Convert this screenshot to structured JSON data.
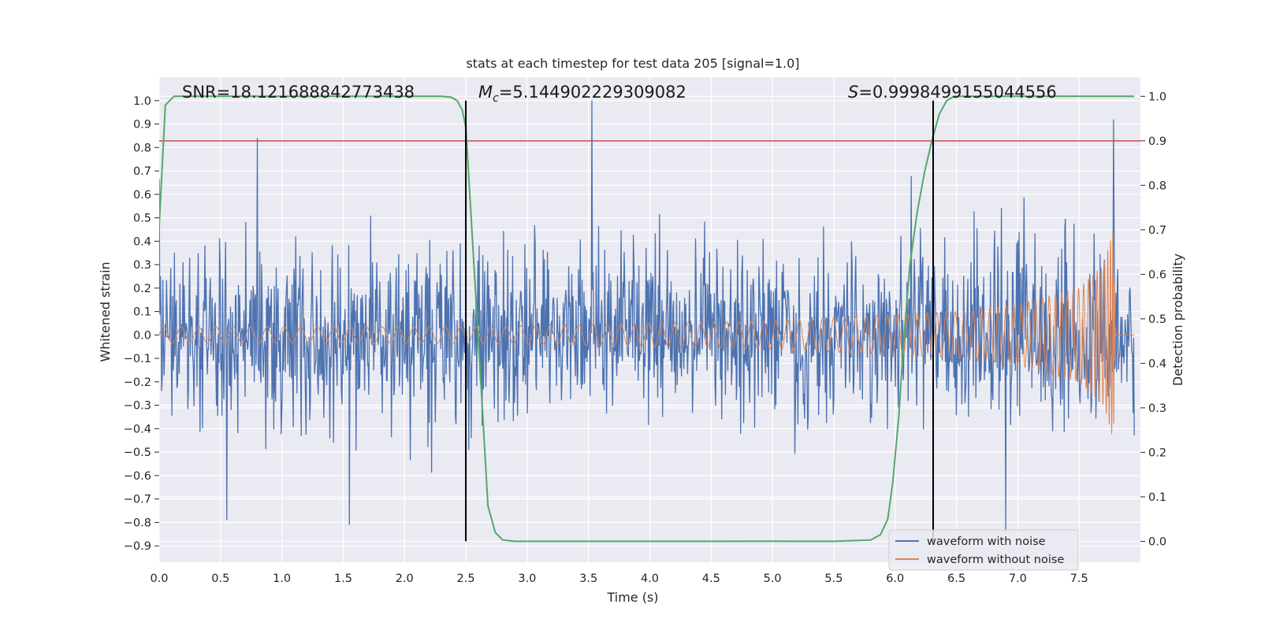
{
  "chart_data": {
    "type": "line",
    "title": "stats at each timestep for test data 205 [signal=1.0]",
    "xlabel": "Time (s)",
    "ylabel": "Whitened strain",
    "y2label": "Detection probability",
    "xlim": [
      0.0,
      8.0
    ],
    "ylim": [
      -0.97,
      1.1
    ],
    "y2lim": [
      -0.047,
      1.043
    ],
    "x_ticks": [
      "0.0",
      "0.5",
      "1.0",
      "1.5",
      "2.0",
      "2.5",
      "3.0",
      "3.5",
      "4.0",
      "4.5",
      "5.0",
      "5.5",
      "6.0",
      "6.5",
      "7.0",
      "7.5"
    ],
    "y_ticks": [
      "1.0",
      "0.9",
      "0.8",
      "0.7",
      "0.6",
      "0.5",
      "0.4",
      "0.3",
      "0.2",
      "0.1",
      "0.0",
      "−0.1",
      "−0.2",
      "−0.3",
      "−0.4",
      "−0.5",
      "−0.6",
      "−0.7",
      "−0.8",
      "−0.9"
    ],
    "y2_ticks": [
      "1.0",
      "0.9",
      "0.8",
      "0.7",
      "0.6",
      "0.5",
      "0.4",
      "0.3",
      "0.2",
      "0.1",
      "0.0"
    ],
    "grid": true,
    "legend_position": "lower-right",
    "colors": {
      "noise": "#4c72b0",
      "clean": "#dd8452",
      "prob": "#55a868",
      "threshold": "#c44e52",
      "marker": "#000000",
      "background": "#eaeaf2"
    },
    "annotations": {
      "snr": "SNR=18.121688842773438",
      "mc_symbol": "M",
      "mc_sub": "c",
      "mc_value": "=5.144902229309082",
      "s_symbol": "S",
      "s_value": "=0.9998499155044556"
    },
    "series": [
      {
        "name": "waveform with noise",
        "axis": "left",
        "description": "noisy whitened strain, amplitude mostly within ±0.5",
        "notable_peaks": [
          {
            "x": 0.8,
            "y": 0.84
          },
          {
            "x": 3.53,
            "y": 1.0
          },
          {
            "x": 7.78,
            "y": 0.92
          },
          {
            "x": 6.9,
            "y": -0.84
          },
          {
            "x": 1.55,
            "y": -0.81
          },
          {
            "x": 0.55,
            "y": -0.79
          }
        ]
      },
      {
        "name": "waveform without noise",
        "axis": "left",
        "description": "chirp signal growing in amplitude and frequency until merger",
        "envelope": [
          {
            "x": 0.0,
            "amp": 0.035
          },
          {
            "x": 2.5,
            "amp": 0.035
          },
          {
            "x": 5.0,
            "amp": 0.06
          },
          {
            "x": 6.5,
            "amp": 0.1
          },
          {
            "x": 7.0,
            "amp": 0.13
          },
          {
            "x": 7.5,
            "amp": 0.2
          },
          {
            "x": 7.7,
            "amp": 0.3
          },
          {
            "x": 7.78,
            "amp": 0.45
          },
          {
            "x": 7.8,
            "amp": 0.0
          }
        ],
        "merger_time": 7.8
      },
      {
        "name": "",
        "axis": "right",
        "description": "detection probability",
        "x": [
          0.0,
          0.05,
          0.12,
          0.2,
          0.5,
          1.0,
          1.5,
          2.0,
          2.3,
          2.38,
          2.43,
          2.47,
          2.5,
          2.56,
          2.62,
          2.68,
          2.74,
          2.8,
          2.9,
          3.0,
          4.0,
          5.0,
          5.5,
          5.8,
          5.88,
          5.94,
          5.98,
          6.03,
          6.07,
          6.12,
          6.18,
          6.24,
          6.3,
          6.36,
          6.42,
          6.48,
          6.6,
          7.0,
          7.5,
          7.95
        ],
        "y": [
          0.71,
          0.98,
          1.0,
          1.0,
          1.0,
          1.0,
          1.0,
          1.0,
          1.0,
          0.998,
          0.99,
          0.97,
          0.93,
          0.65,
          0.37,
          0.08,
          0.02,
          0.003,
          0.0,
          0.0,
          0.0,
          0.0003,
          0.0,
          0.003,
          0.015,
          0.05,
          0.13,
          0.28,
          0.45,
          0.62,
          0.74,
          0.83,
          0.9,
          0.96,
          0.99,
          1.0,
          1.0,
          1.0,
          1.0,
          1.0
        ]
      }
    ],
    "threshold": {
      "axis": "right",
      "value": 0.9
    },
    "vertical_markers": [
      {
        "x": 2.5,
        "ymin": -0.88,
        "ymax": 1.0
      },
      {
        "x": 6.31,
        "ymin": -0.88,
        "ymax": 1.0
      }
    ],
    "legend": [
      "waveform with noise",
      "waveform without noise"
    ]
  }
}
